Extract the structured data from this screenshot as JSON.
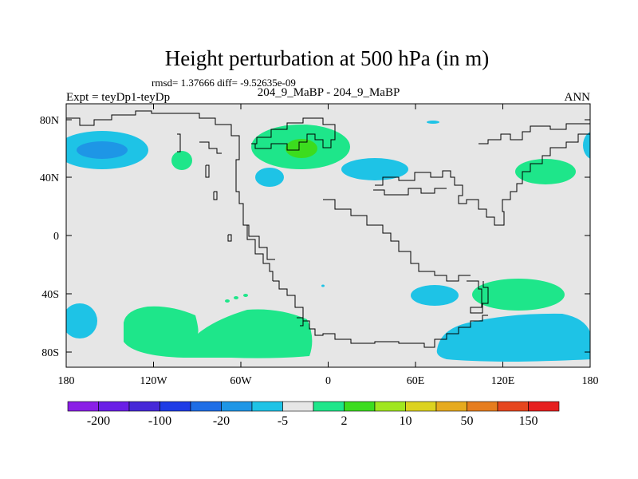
{
  "title": "Height perturbation at 500 hPa (in m)",
  "stats": "rmsd= 1.37666 diff= -9.52635e-09",
  "left_label": "Expt = teyDp1-teyDp",
  "center_label": "204_9_MaBP - 204_9_MaBP",
  "right_label": "ANN",
  "y_ticks": [
    "80N",
    "40N",
    "0",
    "40S",
    "80S"
  ],
  "x_ticks": [
    "180",
    "120W",
    "60W",
    "0",
    "60E",
    "120E",
    "180"
  ],
  "colorbar": {
    "colors": [
      "#8a1ee6",
      "#6a1ee6",
      "#4628d8",
      "#1e3ce6",
      "#1e6ee6",
      "#1e96e6",
      "#1ec3e6",
      "#e6e6e6",
      "#1ee68a",
      "#3cdc1e",
      "#a0e61e",
      "#dcd21e",
      "#e6aa1e",
      "#e67d1e",
      "#e6461e",
      "#e61e1e"
    ],
    "labels": [
      "-200",
      "-100",
      "-20",
      "-5",
      "2",
      "10",
      "50",
      "150"
    ]
  },
  "colors": {
    "background": "#e6e6e6",
    "negative_fill": "#1ec3e6",
    "negative_strong_fill": "#1e96e6",
    "positive_fill": "#1ee68a",
    "positive_strong_fill": "#3cdc1e",
    "coastline": "#000000"
  }
}
